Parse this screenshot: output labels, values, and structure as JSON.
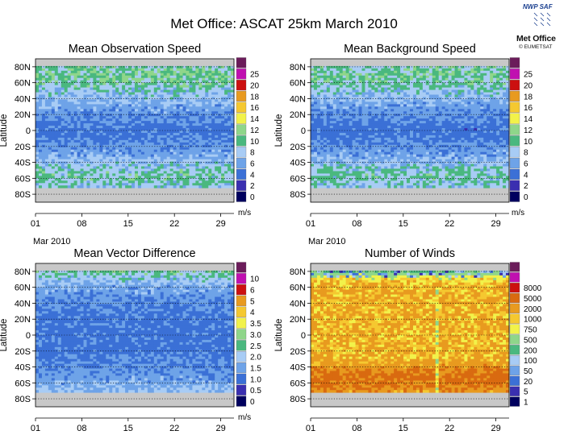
{
  "title": "Met Office: ASCAT 25km March 2010",
  "logo": {
    "saf_text": "NWP SAF",
    "org_text": "Met Office",
    "partner_text": "© EUMETSAT"
  },
  "common": {
    "ylabel": "Latitude",
    "lat_ticks": [
      "80N",
      "60N",
      "40N",
      "20N",
      "0",
      "20S",
      "40S",
      "60S",
      "80S"
    ],
    "lat_values": [
      80,
      60,
      40,
      20,
      0,
      -20,
      -40,
      -60,
      -80
    ],
    "day_ticks": [
      "01",
      "08",
      "15",
      "22",
      "29"
    ],
    "day_values": [
      1,
      8,
      15,
      22,
      29
    ],
    "month_label": "Mar 2010",
    "days_in_month": 31
  },
  "palette": [
    "#00005e",
    "#3a2fb0",
    "#3b70d6",
    "#6ea3e8",
    "#a8ccf5",
    "#4ab87f",
    "#8fd68a",
    "#f2f24a",
    "#f5c830",
    "#e89a1f",
    "#d96a10",
    "#cc1010",
    "#c010b0",
    "#6b1c5a"
  ],
  "chart_data": [
    {
      "type": "heatmap",
      "title": "Mean Observation Speed",
      "unit": "m/s",
      "colorbar_levels": [
        "0",
        "2",
        "4",
        "6",
        "8",
        "10",
        "12",
        "14",
        "16",
        "18",
        "20",
        "25"
      ],
      "colorbar_colors": [
        "#00005e",
        "#3a2fb0",
        "#3b70d6",
        "#6ea3e8",
        "#a8ccf5",
        "#4ab87f",
        "#8fd68a",
        "#f2f24a",
        "#f5c830",
        "#e89a1f",
        "#cc1010",
        "#c010b0",
        "#6b1c5a"
      ],
      "x_range": [
        1,
        31
      ],
      "y_range": [
        -90,
        90
      ],
      "coverage_lat": [
        -72,
        80
      ],
      "profile_lat": [
        80,
        70,
        60,
        50,
        40,
        30,
        20,
        10,
        0,
        -10,
        -20,
        -30,
        -40,
        -50,
        -60,
        -70
      ],
      "profile_value": [
        10.5,
        11,
        10.5,
        9,
        8,
        7,
        6.3,
        5.5,
        5,
        5.5,
        6.2,
        7,
        8.2,
        9.8,
        10,
        9
      ]
    },
    {
      "type": "heatmap",
      "title": "Mean Background Speed",
      "unit": "m/s",
      "colorbar_levels": [
        "0",
        "2",
        "4",
        "6",
        "8",
        "10",
        "12",
        "14",
        "16",
        "18",
        "20",
        "25"
      ],
      "colorbar_colors": [
        "#00005e",
        "#3a2fb0",
        "#3b70d6",
        "#6ea3e8",
        "#a8ccf5",
        "#4ab87f",
        "#8fd68a",
        "#f2f24a",
        "#f5c830",
        "#e89a1f",
        "#cc1010",
        "#c010b0",
        "#6b1c5a"
      ],
      "x_range": [
        1,
        31
      ],
      "y_range": [
        -90,
        90
      ],
      "coverage_lat": [
        -72,
        80
      ],
      "profile_lat": [
        80,
        70,
        60,
        50,
        40,
        30,
        20,
        10,
        0,
        -10,
        -20,
        -30,
        -40,
        -50,
        -60,
        -70
      ],
      "profile_value": [
        10.2,
        10.8,
        10.3,
        8.8,
        7.8,
        6.8,
        6.1,
        5.4,
        4.9,
        5.4,
        6.1,
        6.9,
        8,
        9.6,
        9.8,
        8.8
      ]
    },
    {
      "type": "heatmap",
      "title": "Mean Vector Difference",
      "unit": "m/s",
      "colorbar_levels": [
        "0",
        "0.5",
        "1.0",
        "1.5",
        "2.0",
        "2.5",
        "3.0",
        "3.5",
        "4",
        "5",
        "6",
        "10"
      ],
      "colorbar_colors": [
        "#00005e",
        "#3a2fb0",
        "#3b70d6",
        "#6ea3e8",
        "#a8ccf5",
        "#4ab87f",
        "#8fd68a",
        "#f2f24a",
        "#f5c830",
        "#e89a1f",
        "#cc1010",
        "#c010b0",
        "#6b1c5a"
      ],
      "x_range": [
        1,
        31
      ],
      "y_range": [
        -90,
        90
      ],
      "coverage_lat": [
        -72,
        80
      ],
      "profile_lat": [
        80,
        70,
        60,
        50,
        40,
        30,
        20,
        10,
        0,
        -10,
        -20,
        -30,
        -40,
        -50,
        -60,
        -70
      ],
      "profile_value": [
        2.6,
        2.1,
        1.8,
        1.6,
        1.5,
        1.4,
        1.3,
        1.3,
        1.3,
        1.3,
        1.3,
        1.4,
        1.5,
        1.6,
        1.8,
        2.0
      ]
    },
    {
      "type": "heatmap",
      "title": "Number of Winds",
      "unit": "",
      "colorbar_levels": [
        "1",
        "5",
        "20",
        "50",
        "100",
        "200",
        "500",
        "750",
        "1000",
        "2000",
        "5000",
        "8000"
      ],
      "colorbar_colors": [
        "#00005e",
        "#3a2fb0",
        "#3b70d6",
        "#6ea3e8",
        "#a8ccf5",
        "#4ab87f",
        "#8fd68a",
        "#f2f24a",
        "#f5c830",
        "#e89a1f",
        "#d96a10",
        "#cc1010",
        "#c010b0",
        "#6b1c5a"
      ],
      "x_range": [
        1,
        31
      ],
      "y_range": [
        -90,
        90
      ],
      "coverage_lat": [
        -72,
        80
      ],
      "profile_lat": [
        80,
        70,
        60,
        50,
        40,
        30,
        20,
        10,
        0,
        -10,
        -20,
        -30,
        -40,
        -50,
        -60,
        -70
      ],
      "profile_value": [
        150,
        750,
        1000,
        1000,
        1000,
        1000,
        1000,
        1000,
        1000,
        1000,
        1000,
        1000,
        1500,
        2500,
        2500,
        1500
      ],
      "gap_day": 20
    }
  ]
}
